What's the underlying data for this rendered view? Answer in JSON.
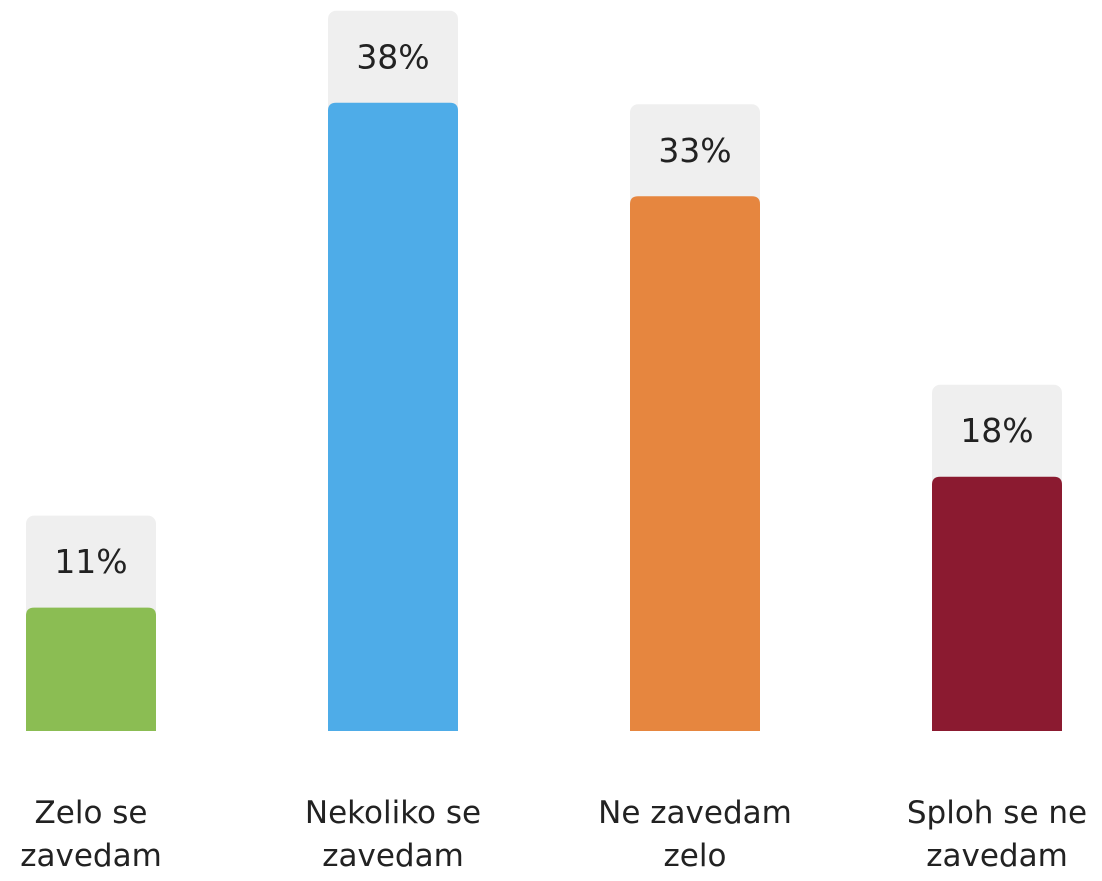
{
  "chart_data": {
    "type": "bar",
    "categories": [
      "Zelo se zavedam",
      "Nekoliko se zavedam",
      "Ne zavedam zelo",
      "Sploh se ne zavedam"
    ],
    "values": [
      11,
      38,
      33,
      18
    ],
    "value_labels": [
      "11%",
      "38%",
      "33%",
      "18%"
    ],
    "colors": [
      "#8bbd53",
      "#4eace8",
      "#e6863f",
      "#8b1a30"
    ],
    "ylim": [
      4.4,
      42
    ]
  }
}
